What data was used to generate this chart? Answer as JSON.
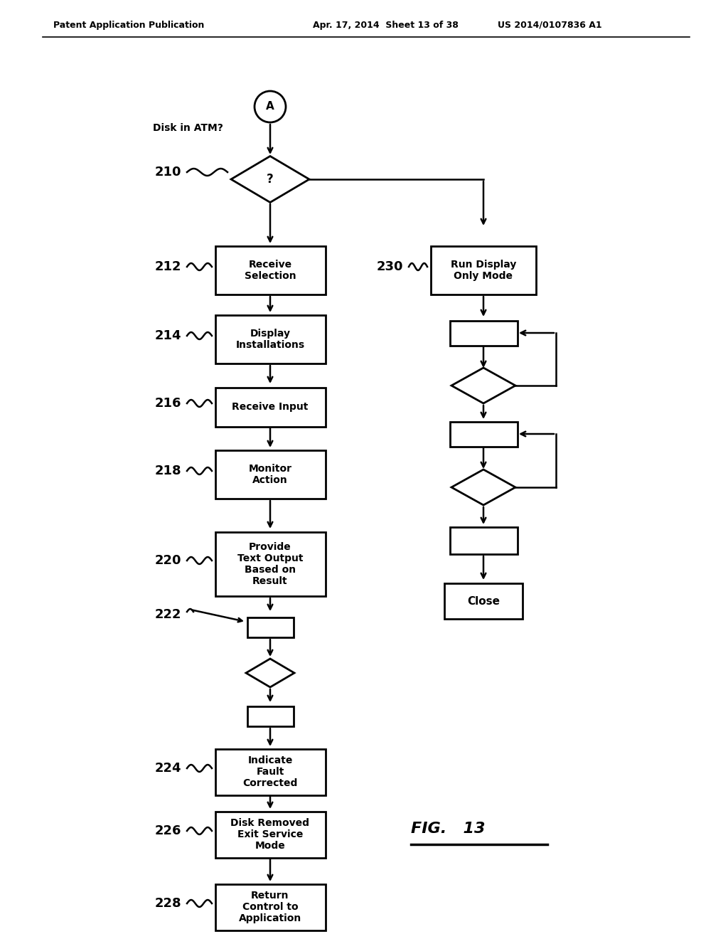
{
  "bg_color": "#ffffff",
  "header_left": "Patent Application Publication",
  "header_mid": "Apr. 17, 2014  Sheet 13 of 38",
  "header_right": "US 2014/0107836 A1",
  "fig_label": "FIG.   13",
  "title_annotation": "Disk in ATM?",
  "circle_label": "A",
  "decision_210_label": "?",
  "step_210": "210",
  "step_212": "212",
  "step_212_text": "Receive\nSelection",
  "step_214": "214",
  "step_214_text": "Display\nInstallations",
  "step_216": "216",
  "step_216_text": "Receive Input",
  "step_218": "218",
  "step_218_text": "Monitor\nAction",
  "step_220": "220",
  "step_220_text": "Provide\nText Output\nBased on\nResult",
  "step_222": "222",
  "step_224": "224",
  "step_224_text": "Indicate\nFault\nCorrected",
  "step_226": "226",
  "step_226_text": "Disk Removed\nExit Service\nMode",
  "step_228": "228",
  "step_228_text": "Return\nControl to\nApplication",
  "step_230": "230",
  "step_230_text": "Run Display\nOnly Mode",
  "close_text": "Close"
}
